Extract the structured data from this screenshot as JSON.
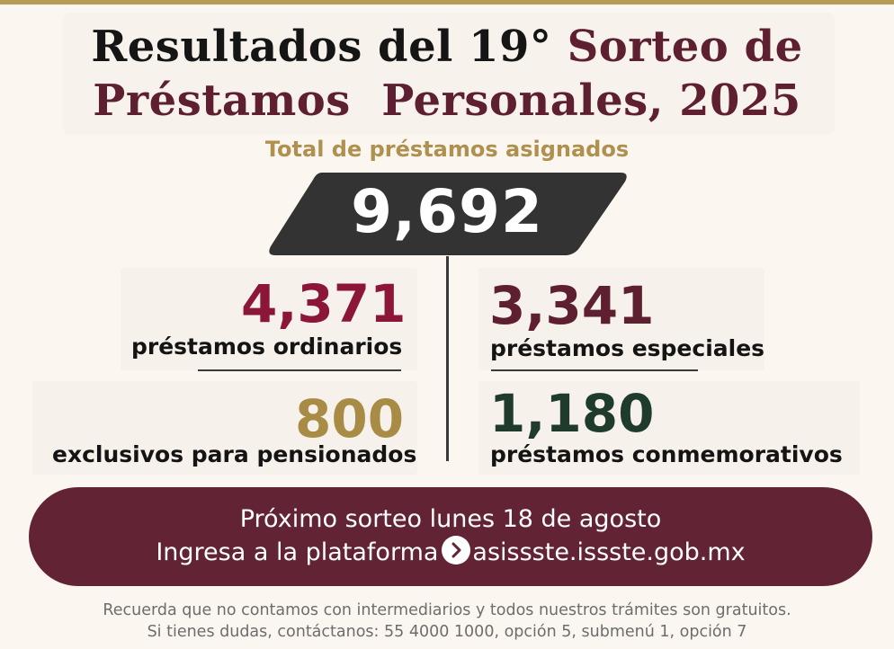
{
  "title": {
    "line1_part1": "Resultados del 19°",
    "line1_part2": "Sorteo de",
    "line2": "Préstamos  Personales, 2025"
  },
  "subtitle": "Total de préstamos asignados",
  "total": "9,692",
  "stats": {
    "ordinarios": {
      "value": "4,371",
      "label": "préstamos ordinarios",
      "color": "#8b1638"
    },
    "especiales": {
      "value": "3,341",
      "label": "préstamos especiales",
      "color": "#5e2030"
    },
    "pensionados": {
      "value": "800",
      "label": "exclusivos para pensionados",
      "color": "#a88c45"
    },
    "conmemorativos": {
      "value": "1,180",
      "label": "préstamos conmemorativos",
      "color": "#1f3b2c"
    }
  },
  "banner": {
    "line1": "Próximo sorteo lunes 18 de agosto",
    "line2_prefix": "Ingresa a la plataforma",
    "line2_icon": "chevron-right-circle-icon",
    "line2_link": "asissste.issste.gob.mx"
  },
  "footer": {
    "line1": "Recuerda que no contamos con intermediarios y todos nuestros trámites son gratuitos.",
    "line2": "Si tienes dudas, contáctanos: 55 4000 1000,  opción 5, submenú 1, opción 7"
  },
  "colors": {
    "gold": "#b0904f",
    "wine": "#5e2030",
    "dark": "#151515",
    "banner": "#622334",
    "background": "#fbf6ef"
  }
}
